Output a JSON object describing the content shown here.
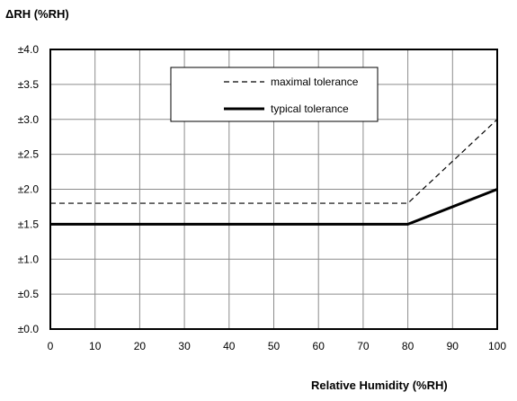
{
  "chart_data": {
    "type": "line",
    "title": "",
    "ylabel": "ΔRH (%RH)",
    "xlabel": "Relative Humidity (%RH)",
    "xlim": [
      0,
      100
    ],
    "ylim": [
      0,
      4.0
    ],
    "x_ticks": [
      0,
      10,
      20,
      30,
      40,
      50,
      60,
      70,
      80,
      90,
      100
    ],
    "x_tick_labels": [
      "0",
      "10",
      "20",
      "30",
      "40",
      "50",
      "60",
      "70",
      "80",
      "90",
      "100"
    ],
    "y_ticks": [
      0.0,
      0.5,
      1.0,
      1.5,
      2.0,
      2.5,
      3.0,
      3.5,
      4.0
    ],
    "y_tick_labels": [
      "±0.0",
      "±0.5",
      "±1.0",
      "±1.5",
      "±2.0",
      "±2.5",
      "±3.0",
      "±3.5",
      "±4.0"
    ],
    "grid": true,
    "legend_position": "top-right",
    "series": [
      {
        "name": "maximal tolerance",
        "style": "dashed",
        "color": "#000000",
        "x": [
          0,
          80,
          100
        ],
        "y": [
          1.8,
          1.8,
          3.0
        ]
      },
      {
        "name": "typical tolerance",
        "style": "solid-thick",
        "color": "#000000",
        "x": [
          0,
          80,
          100
        ],
        "y": [
          1.5,
          1.5,
          2.0
        ]
      }
    ]
  }
}
